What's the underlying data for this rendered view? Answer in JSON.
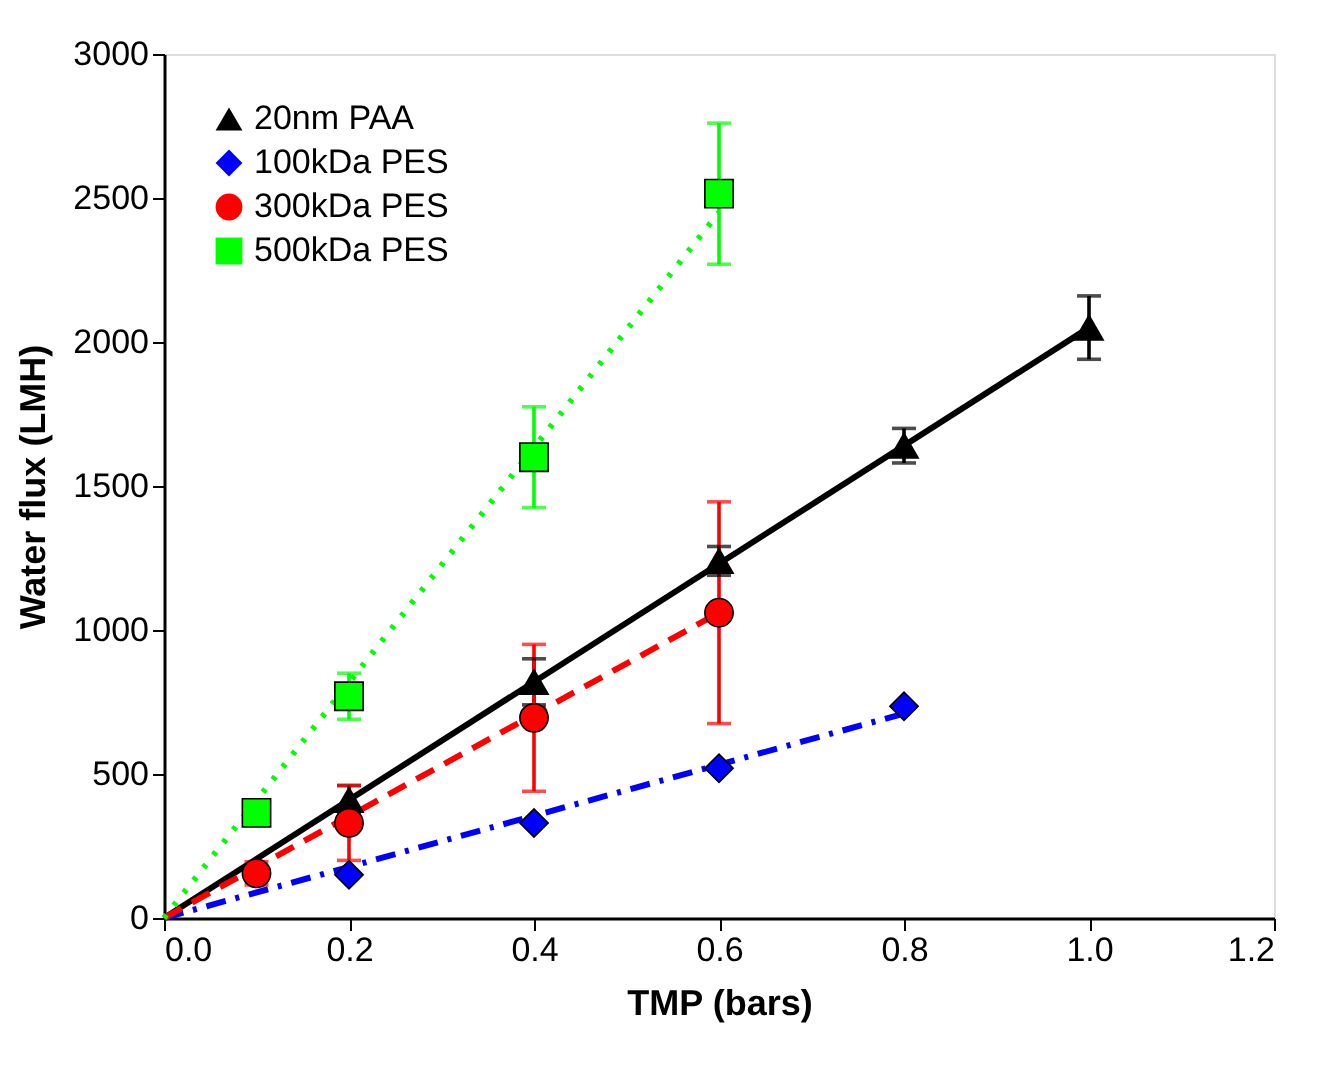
{
  "chart_data": {
    "type": "scatter",
    "xlabel": "TMP (bars)",
    "ylabel": "Water flux (LMH)",
    "xlim": [
      0,
      1.2
    ],
    "ylim": [
      0,
      3000
    ],
    "xticks": [
      {
        "value": 0,
        "label": "0.0"
      },
      {
        "value": 0.2,
        "label": "0.2"
      },
      {
        "value": 0.4,
        "label": "0.4"
      },
      {
        "value": 0.6,
        "label": "0.6"
      },
      {
        "value": 0.8,
        "label": "0.8"
      },
      {
        "value": 1,
        "label": "1.0"
      },
      {
        "value": 1.2,
        "label": "1.2"
      }
    ],
    "yticks": [
      0,
      500,
      1000,
      1500,
      2000,
      2500,
      3000
    ],
    "grid": false,
    "legend": "top left",
    "series": [
      {
        "name": "20nm PAA",
        "color": "#000000",
        "marker": "triangle",
        "x": [
          0.2,
          0.4,
          0.6,
          0.8,
          1.0
        ],
        "values": [
          410,
          820,
          1240,
          1640,
          2050
        ],
        "errors": [
          50,
          80,
          50,
          60,
          110
        ]
      },
      {
        "name": "100kDa PES",
        "color": "#0000ff",
        "marker": "diamond",
        "x": [
          0.2,
          0.4,
          0.6,
          0.8
        ],
        "values": [
          150,
          330,
          520,
          735
        ],
        "errors": [
          null,
          null,
          null,
          null
        ]
      },
      {
        "name": "300kDa PES",
        "color": "#ff0000",
        "marker": "circle",
        "x": [
          0.1,
          0.2,
          0.4,
          0.6
        ],
        "values": [
          155,
          330,
          695,
          1060
        ],
        "errors": [
          40,
          130,
          255,
          385
        ]
      },
      {
        "name": "500kDa PES",
        "color": "#00ff00",
        "marker": "square",
        "x": [
          0.1,
          0.2,
          0.4,
          0.6
        ],
        "values": [
          365,
          770,
          1600,
          2515
        ],
        "errors": [
          40,
          80,
          175,
          245
        ]
      },
      {
        "type": "line",
        "color": "#000000",
        "line_style": "solid",
        "x": [
          0,
          1.0
        ],
        "values": [
          0,
          2050
        ]
      },
      {
        "type": "line",
        "color": "#0000ff",
        "line_style": "dashdot",
        "x": [
          0,
          0.8
        ],
        "values": [
          0,
          710
        ]
      },
      {
        "type": "line",
        "color": "#ff0000",
        "line_style": "dashed",
        "x": [
          0,
          0.6
        ],
        "values": [
          0,
          1060
        ]
      },
      {
        "type": "line",
        "color": "#00ff00",
        "line_style": "dotted",
        "x": [
          0,
          0.6
        ],
        "values": [
          0,
          2450
        ]
      }
    ]
  }
}
